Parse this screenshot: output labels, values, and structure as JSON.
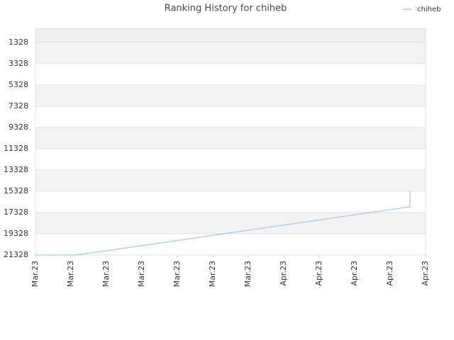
{
  "chart_data": {
    "type": "line",
    "title": "Ranking History for chiheb",
    "x": [
      0,
      1.16,
      10.56,
      10.56
    ],
    "series": [
      {
        "name": "chiheb",
        "color": "#9ec9ee",
        "values": [
          21328,
          21328,
          16795,
          15261
        ]
      }
    ],
    "xlim": [
      0,
      11
    ],
    "xticks": [
      {
        "value": 0,
        "label": "Mar.23"
      },
      {
        "value": 1,
        "label": "Mar.23"
      },
      {
        "value": 2,
        "label": "Mar.23"
      },
      {
        "value": 3,
        "label": "Mar.23"
      },
      {
        "value": 4,
        "label": "Mar.23"
      },
      {
        "value": 5,
        "label": "Mar.23"
      },
      {
        "value": 6,
        "label": "Mar.23"
      },
      {
        "value": 7,
        "label": "Apr.23"
      },
      {
        "value": 8,
        "label": "Apr.23"
      },
      {
        "value": 9,
        "label": "Apr.23"
      },
      {
        "value": 10,
        "label": "Apr.23"
      },
      {
        "value": 11,
        "label": "Apr.23"
      }
    ],
    "ylim": [
      21328,
      0
    ],
    "yticks": [
      1328,
      3328,
      5328,
      7328,
      9328,
      11328,
      13328,
      15328,
      17328,
      19328,
      21328
    ],
    "grid": true,
    "legend": "top-right"
  }
}
